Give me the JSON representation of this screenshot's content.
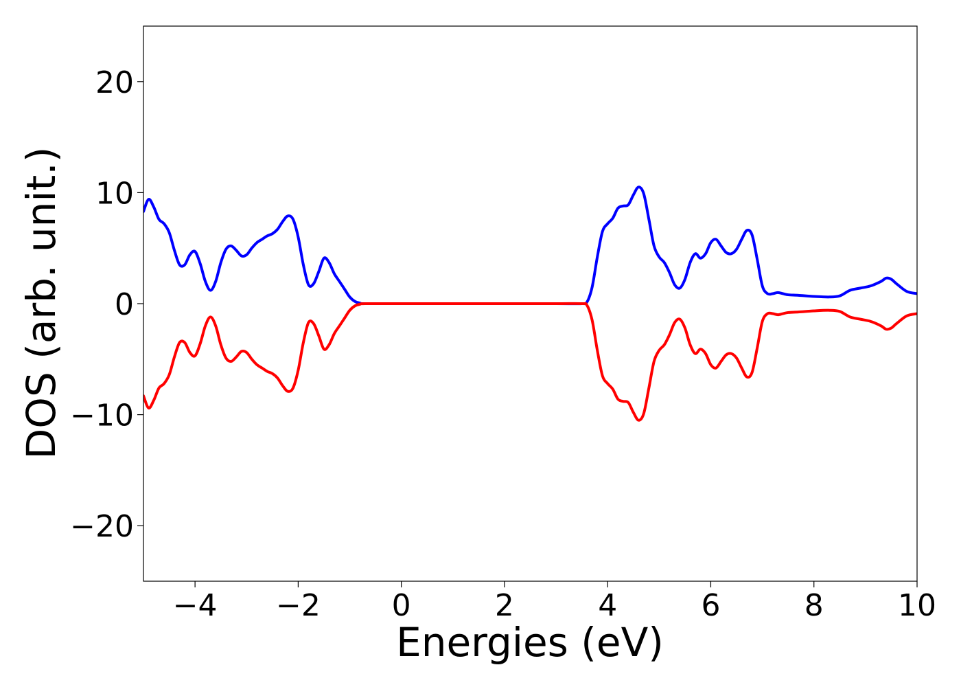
{
  "chart_data": {
    "type": "line",
    "title": "",
    "xlabel": "Energies (eV)",
    "ylabel": "DOS (arb. unit.)",
    "xlim": [
      -5,
      10
    ],
    "ylim": [
      -25,
      25
    ],
    "x_ticks": [
      -4,
      -2,
      0,
      2,
      4,
      6,
      8,
      10
    ],
    "x_tick_labels": [
      "−4",
      "−2",
      "0",
      "2",
      "4",
      "6",
      "8",
      "10"
    ],
    "y_ticks": [
      -20,
      -10,
      0,
      10,
      20
    ],
    "y_tick_labels": [
      "−20",
      "−10",
      "0",
      "10",
      "20"
    ],
    "grid": false,
    "legend": "none",
    "series": [
      {
        "color": "#0000ff",
        "points": [
          [
            -5.0,
            8.3
          ],
          [
            -4.9,
            9.4
          ],
          [
            -4.8,
            8.7
          ],
          [
            -4.7,
            7.6
          ],
          [
            -4.6,
            7.2
          ],
          [
            -4.5,
            6.4
          ],
          [
            -4.4,
            4.8
          ],
          [
            -4.3,
            3.5
          ],
          [
            -4.2,
            3.5
          ],
          [
            -4.1,
            4.4
          ],
          [
            -4.0,
            4.7
          ],
          [
            -3.9,
            3.6
          ],
          [
            -3.8,
            2.0
          ],
          [
            -3.7,
            1.2
          ],
          [
            -3.6,
            2.0
          ],
          [
            -3.5,
            3.7
          ],
          [
            -3.4,
            4.9
          ],
          [
            -3.3,
            5.2
          ],
          [
            -3.2,
            4.8
          ],
          [
            -3.1,
            4.3
          ],
          [
            -3.0,
            4.4
          ],
          [
            -2.9,
            5.0
          ],
          [
            -2.8,
            5.5
          ],
          [
            -2.7,
            5.8
          ],
          [
            -2.6,
            6.1
          ],
          [
            -2.5,
            6.3
          ],
          [
            -2.4,
            6.7
          ],
          [
            -2.3,
            7.4
          ],
          [
            -2.2,
            7.9
          ],
          [
            -2.1,
            7.6
          ],
          [
            -2.0,
            6.0
          ],
          [
            -1.9,
            3.5
          ],
          [
            -1.8,
            1.7
          ],
          [
            -1.7,
            1.8
          ],
          [
            -1.6,
            2.9
          ],
          [
            -1.5,
            4.1
          ],
          [
            -1.4,
            3.7
          ],
          [
            -1.3,
            2.7
          ],
          [
            -1.2,
            2.0
          ],
          [
            -1.1,
            1.3
          ],
          [
            -1.0,
            0.6
          ],
          [
            -0.9,
            0.2
          ],
          [
            -0.8,
            0.05
          ],
          [
            -0.7,
            0.0
          ],
          [
            0.0,
            0.0
          ],
          [
            1.0,
            0.0
          ],
          [
            2.0,
            0.0
          ],
          [
            3.0,
            0.0
          ],
          [
            3.5,
            0.0
          ],
          [
            3.6,
            0.15
          ],
          [
            3.7,
            1.5
          ],
          [
            3.8,
            4.2
          ],
          [
            3.9,
            6.5
          ],
          [
            4.0,
            7.2
          ],
          [
            4.1,
            7.7
          ],
          [
            4.2,
            8.6
          ],
          [
            4.3,
            8.8
          ],
          [
            4.4,
            8.9
          ],
          [
            4.5,
            9.8
          ],
          [
            4.6,
            10.5
          ],
          [
            4.7,
            9.9
          ],
          [
            4.8,
            7.6
          ],
          [
            4.9,
            5.2
          ],
          [
            5.0,
            4.2
          ],
          [
            5.1,
            3.7
          ],
          [
            5.2,
            2.8
          ],
          [
            5.3,
            1.7
          ],
          [
            5.4,
            1.4
          ],
          [
            5.5,
            2.2
          ],
          [
            5.6,
            3.7
          ],
          [
            5.7,
            4.5
          ],
          [
            5.8,
            4.1
          ],
          [
            5.9,
            4.5
          ],
          [
            6.0,
            5.5
          ],
          [
            6.1,
            5.8
          ],
          [
            6.2,
            5.2
          ],
          [
            6.3,
            4.6
          ],
          [
            6.4,
            4.5
          ],
          [
            6.5,
            4.9
          ],
          [
            6.6,
            5.8
          ],
          [
            6.7,
            6.6
          ],
          [
            6.8,
            6.2
          ],
          [
            6.9,
            4.0
          ],
          [
            7.0,
            1.6
          ],
          [
            7.1,
            0.9
          ],
          [
            7.2,
            0.9
          ],
          [
            7.3,
            1.0
          ],
          [
            7.4,
            0.9
          ],
          [
            7.5,
            0.8
          ],
          [
            7.7,
            0.75
          ],
          [
            8.0,
            0.65
          ],
          [
            8.3,
            0.6
          ],
          [
            8.5,
            0.7
          ],
          [
            8.7,
            1.2
          ],
          [
            8.9,
            1.4
          ],
          [
            9.1,
            1.6
          ],
          [
            9.3,
            2.0
          ],
          [
            9.4,
            2.3
          ],
          [
            9.5,
            2.2
          ],
          [
            9.6,
            1.8
          ],
          [
            9.8,
            1.1
          ],
          [
            10.0,
            0.9
          ]
        ]
      },
      {
        "color": "#ff0000",
        "points": [
          [
            -5.0,
            -8.3
          ],
          [
            -4.9,
            -9.4
          ],
          [
            -4.8,
            -8.7
          ],
          [
            -4.7,
            -7.6
          ],
          [
            -4.6,
            -7.2
          ],
          [
            -4.5,
            -6.4
          ],
          [
            -4.4,
            -4.8
          ],
          [
            -4.3,
            -3.5
          ],
          [
            -4.2,
            -3.5
          ],
          [
            -4.1,
            -4.4
          ],
          [
            -4.0,
            -4.7
          ],
          [
            -3.9,
            -3.6
          ],
          [
            -3.8,
            -2.0
          ],
          [
            -3.7,
            -1.2
          ],
          [
            -3.6,
            -2.0
          ],
          [
            -3.5,
            -3.7
          ],
          [
            -3.4,
            -4.9
          ],
          [
            -3.3,
            -5.2
          ],
          [
            -3.2,
            -4.8
          ],
          [
            -3.1,
            -4.3
          ],
          [
            -3.0,
            -4.4
          ],
          [
            -2.9,
            -5.0
          ],
          [
            -2.8,
            -5.5
          ],
          [
            -2.7,
            -5.8
          ],
          [
            -2.6,
            -6.1
          ],
          [
            -2.5,
            -6.3
          ],
          [
            -2.4,
            -6.7
          ],
          [
            -2.3,
            -7.4
          ],
          [
            -2.2,
            -7.9
          ],
          [
            -2.1,
            -7.6
          ],
          [
            -2.0,
            -6.0
          ],
          [
            -1.9,
            -3.5
          ],
          [
            -1.8,
            -1.7
          ],
          [
            -1.7,
            -1.8
          ],
          [
            -1.6,
            -2.9
          ],
          [
            -1.5,
            -4.1
          ],
          [
            -1.4,
            -3.7
          ],
          [
            -1.3,
            -2.7
          ],
          [
            -1.2,
            -2.0
          ],
          [
            -1.1,
            -1.3
          ],
          [
            -1.0,
            -0.6
          ],
          [
            -0.9,
            -0.2
          ],
          [
            -0.8,
            -0.05
          ],
          [
            -0.7,
            0.0
          ],
          [
            0.0,
            0.0
          ],
          [
            1.0,
            0.0
          ],
          [
            2.0,
            0.0
          ],
          [
            3.0,
            0.0
          ],
          [
            3.5,
            0.0
          ],
          [
            3.6,
            -0.15
          ],
          [
            3.7,
            -1.5
          ],
          [
            3.8,
            -4.2
          ],
          [
            3.9,
            -6.5
          ],
          [
            4.0,
            -7.2
          ],
          [
            4.1,
            -7.7
          ],
          [
            4.2,
            -8.6
          ],
          [
            4.3,
            -8.8
          ],
          [
            4.4,
            -8.9
          ],
          [
            4.5,
            -9.8
          ],
          [
            4.6,
            -10.5
          ],
          [
            4.7,
            -9.9
          ],
          [
            4.8,
            -7.6
          ],
          [
            4.9,
            -5.2
          ],
          [
            5.0,
            -4.2
          ],
          [
            5.1,
            -3.7
          ],
          [
            5.2,
            -2.8
          ],
          [
            5.3,
            -1.7
          ],
          [
            5.4,
            -1.4
          ],
          [
            5.5,
            -2.2
          ],
          [
            5.6,
            -3.7
          ],
          [
            5.7,
            -4.5
          ],
          [
            5.8,
            -4.1
          ],
          [
            5.9,
            -4.5
          ],
          [
            6.0,
            -5.5
          ],
          [
            6.1,
            -5.8
          ],
          [
            6.2,
            -5.2
          ],
          [
            6.3,
            -4.6
          ],
          [
            6.4,
            -4.5
          ],
          [
            6.5,
            -4.9
          ],
          [
            6.6,
            -5.8
          ],
          [
            6.7,
            -6.6
          ],
          [
            6.8,
            -6.2
          ],
          [
            6.9,
            -4.0
          ],
          [
            7.0,
            -1.6
          ],
          [
            7.1,
            -0.9
          ],
          [
            7.2,
            -0.9
          ],
          [
            7.3,
            -1.0
          ],
          [
            7.4,
            -0.9
          ],
          [
            7.5,
            -0.8
          ],
          [
            7.7,
            -0.75
          ],
          [
            8.0,
            -0.65
          ],
          [
            8.3,
            -0.6
          ],
          [
            8.5,
            -0.7
          ],
          [
            8.7,
            -1.2
          ],
          [
            8.9,
            -1.4
          ],
          [
            9.1,
            -1.6
          ],
          [
            9.3,
            -2.0
          ],
          [
            9.4,
            -2.3
          ],
          [
            9.5,
            -2.2
          ],
          [
            9.6,
            -1.8
          ],
          [
            9.8,
            -1.1
          ],
          [
            10.0,
            -0.9
          ]
        ]
      }
    ]
  }
}
